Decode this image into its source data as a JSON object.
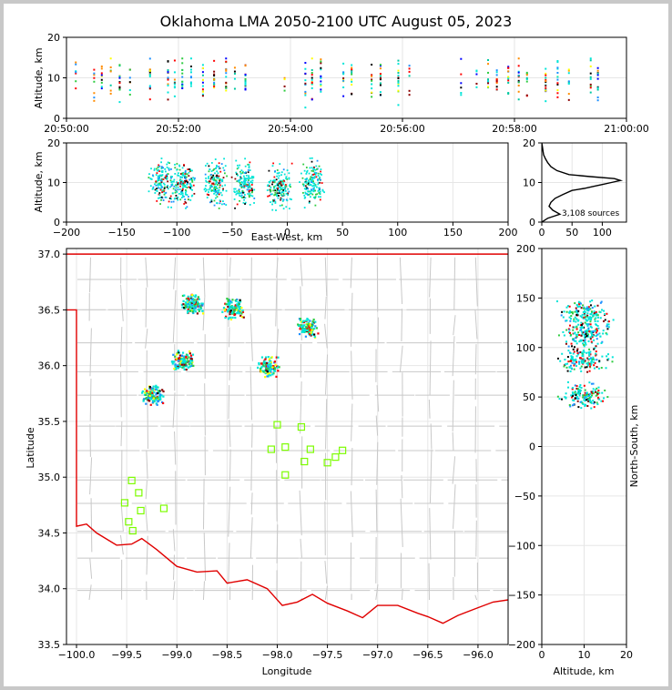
{
  "title": "Oklahoma LMA 2050-2100 UTC August 05, 2023",
  "colors": {
    "border": "#e00000",
    "county": "#c8c8c8",
    "station": "#7cfc00"
  },
  "chart_data": [
    {
      "id": "time_height",
      "type": "scatter",
      "ylabel": "Altitude, km",
      "xlabel": "",
      "ylim": [
        0,
        20
      ],
      "yticks": [
        "0",
        "10",
        "20"
      ],
      "xticks": [
        "20:50:00",
        "20:52:00",
        "20:54:00",
        "20:56:00",
        "20:58:00",
        "21:00:00"
      ],
      "xlim_minutes": [
        0,
        10
      ]
    },
    {
      "id": "ew_height",
      "type": "scatter",
      "xlabel": "East-West, km",
      "ylabel": "Altitude, km",
      "xlim": [
        -200,
        200
      ],
      "ylim": [
        0,
        20
      ],
      "xticks": [
        "−200",
        "−150",
        "−100",
        "−50",
        "0",
        "50",
        "100",
        "150",
        "200"
      ],
      "yticks": [
        "0",
        "10",
        "20"
      ],
      "clusters": [
        {
          "x": -115,
          "alt": 10
        },
        {
          "x": -95,
          "alt": 10
        },
        {
          "x": -65,
          "alt": 10
        },
        {
          "x": -40,
          "alt": 10
        },
        {
          "x": -8,
          "alt": 9
        },
        {
          "x": 22,
          "alt": 10
        }
      ]
    },
    {
      "id": "altitude_histogram",
      "type": "line",
      "xlabel": "",
      "ylabel": "",
      "xlim": [
        0,
        140
      ],
      "ylim": [
        0,
        20
      ],
      "xticks": [
        "0",
        "50",
        "100"
      ],
      "yticks": [
        "0",
        "10",
        "20"
      ],
      "annotation": "3,108 sources",
      "profile": [
        [
          0,
          0
        ],
        [
          10,
          1
        ],
        [
          20,
          1.5
        ],
        [
          30,
          2
        ],
        [
          18,
          3
        ],
        [
          12,
          4
        ],
        [
          15,
          5
        ],
        [
          22,
          6
        ],
        [
          35,
          7
        ],
        [
          50,
          8
        ],
        [
          70,
          8.5
        ],
        [
          85,
          9
        ],
        [
          100,
          9.5
        ],
        [
          115,
          10
        ],
        [
          130,
          10.5
        ],
        [
          120,
          11
        ],
        [
          80,
          11.5
        ],
        [
          45,
          12
        ],
        [
          25,
          13
        ],
        [
          15,
          14
        ],
        [
          10,
          15
        ],
        [
          6,
          16
        ],
        [
          3,
          17
        ],
        [
          2,
          18
        ],
        [
          1,
          19
        ],
        [
          0,
          20
        ]
      ]
    },
    {
      "id": "plan_view",
      "type": "scatter",
      "xlabel": "Longitude",
      "ylabel": "Latitude",
      "xlim": [
        -100.1,
        -95.7
      ],
      "ylim": [
        33.5,
        37.05
      ],
      "xticks": [
        "−100.0",
        "−99.5",
        "−99.0",
        "−98.5",
        "−98.0",
        "−97.5",
        "−97.0",
        "−96.5",
        "−96.0"
      ],
      "yticks": [
        "33.5",
        "34.0",
        "34.5",
        "35.0",
        "35.5",
        "36.0",
        "36.5",
        "37.0"
      ],
      "clusters": [
        {
          "lon": -98.85,
          "lat": 36.55
        },
        {
          "lon": -98.45,
          "lat": 36.52
        },
        {
          "lon": -97.7,
          "lat": 36.35
        },
        {
          "lon": -98.95,
          "lat": 36.05
        },
        {
          "lon": -98.1,
          "lat": 36.0
        },
        {
          "lon": -99.25,
          "lat": 35.75
        }
      ],
      "stations": [
        {
          "lon": -98.0,
          "lat": 35.47
        },
        {
          "lon": -97.76,
          "lat": 35.45
        },
        {
          "lon": -98.06,
          "lat": 35.25
        },
        {
          "lon": -97.92,
          "lat": 35.27
        },
        {
          "lon": -97.67,
          "lat": 35.25
        },
        {
          "lon": -97.35,
          "lat": 35.24
        },
        {
          "lon": -97.42,
          "lat": 35.18
        },
        {
          "lon": -97.73,
          "lat": 35.14
        },
        {
          "lon": -97.5,
          "lat": 35.13
        },
        {
          "lon": -97.92,
          "lat": 35.02
        },
        {
          "lon": -99.45,
          "lat": 34.97
        },
        {
          "lon": -99.38,
          "lat": 34.86
        },
        {
          "lon": -99.52,
          "lat": 34.77
        },
        {
          "lon": -99.36,
          "lat": 34.7
        },
        {
          "lon": -99.13,
          "lat": 34.72
        },
        {
          "lon": -99.48,
          "lat": 34.6
        },
        {
          "lon": -99.44,
          "lat": 34.52
        }
      ]
    },
    {
      "id": "ns_height",
      "type": "scatter",
      "xlabel": "Altitude, km",
      "ylabel": "North-South, km",
      "xlim": [
        0,
        20
      ],
      "ylim": [
        -200,
        200
      ],
      "xticks": [
        "0",
        "10",
        "20"
      ],
      "yticks": [
        "−200",
        "−150",
        "−100",
        "−50",
        "0",
        "50",
        "100",
        "150",
        "200"
      ],
      "clusters": [
        {
          "ns": 135,
          "alt": 10
        },
        {
          "ns": 115,
          "alt": 10
        },
        {
          "ns": 88,
          "alt": 10
        },
        {
          "ns": 52,
          "alt": 10
        }
      ]
    }
  ]
}
